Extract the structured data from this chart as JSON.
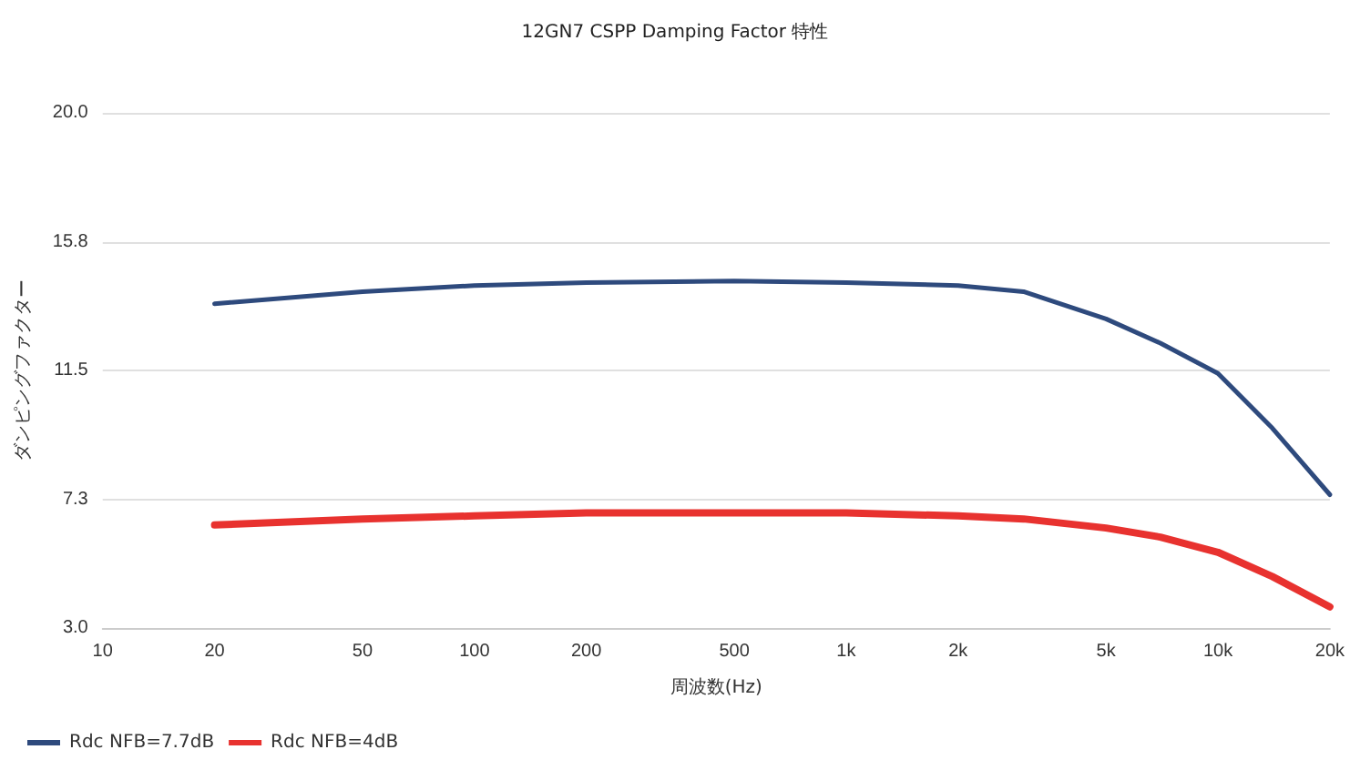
{
  "chart_data": {
    "type": "line",
    "title": "12GN7 CSPP Damping Factor 特性",
    "xlabel": "周波数(Hz)",
    "ylabel": "ダンピングファクター",
    "log": "x",
    "xlim": [
      10,
      20000
    ],
    "xticks": [
      10,
      20,
      50,
      100,
      200,
      500,
      {
        "value": 1000,
        "label": "1k"
      },
      {
        "value": 2000,
        "label": "2k"
      },
      {
        "value": 5000,
        "label": "5k"
      },
      {
        "value": 10000,
        "label": "10k"
      },
      {
        "value": 20000,
        "label": "20k"
      }
    ],
    "ylim": [
      3.0,
      20.0
    ],
    "yticks": [
      {
        "value": 3,
        "label": "3.0"
      },
      {
        "value": 7.25,
        "label": "7.3"
      },
      {
        "value": 11.5,
        "label": "11.5"
      },
      {
        "value": 15.75,
        "label": "15.8"
      },
      {
        "value": 20,
        "label": "20.0"
      }
    ],
    "grid": "y",
    "legend": "bottom left",
    "marker": "none",
    "line_style": "solid",
    "series": [
      {
        "name": "Rdc NFB=7.7dB",
        "color": "#2e4a7d",
        "x": [
          20,
          50,
          100,
          200,
          500,
          1000,
          2000,
          3000,
          5000,
          7000,
          10000,
          14000,
          20000
        ],
        "values": [
          13.7,
          14.1,
          14.3,
          14.4,
          14.45,
          14.4,
          14.3,
          14.1,
          13.2,
          12.4,
          11.4,
          9.6,
          7.4
        ]
      },
      {
        "name": "Rdc NFB=4dB",
        "color": "#e8322f",
        "x": [
          20,
          50,
          100,
          200,
          500,
          1000,
          2000,
          3000,
          5000,
          7000,
          10000,
          14000,
          20000
        ],
        "values": [
          6.4,
          6.6,
          6.7,
          6.8,
          6.8,
          6.8,
          6.7,
          6.6,
          6.3,
          6.0,
          5.5,
          4.7,
          3.7
        ]
      }
    ]
  }
}
